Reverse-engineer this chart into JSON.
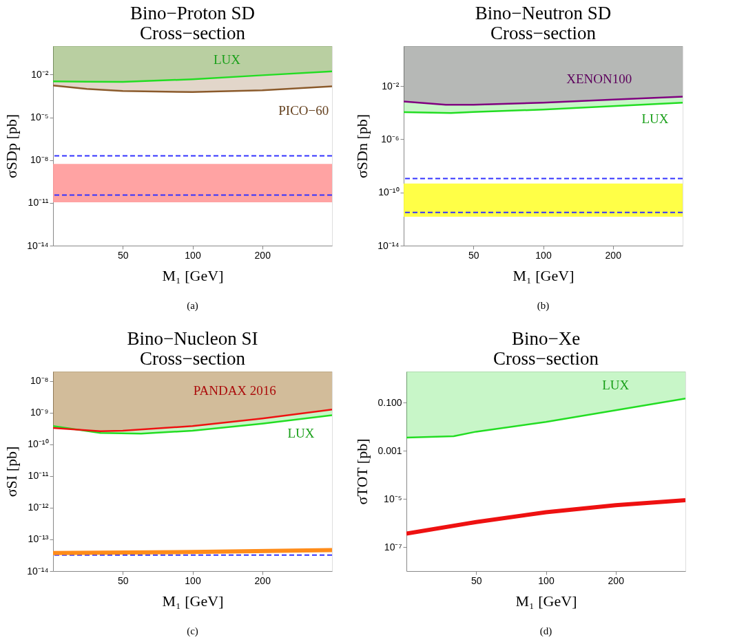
{
  "chart_data": [
    {
      "type": "line",
      "title": "Bino−Proton SD\nCross−section",
      "xlabel": "M₁ [GeV]",
      "ylabel": "σSDp [pb]",
      "log": "xy",
      "grid": false,
      "xlim": [
        25,
        400
      ],
      "xticks": [
        50,
        100,
        200
      ],
      "ylim": [
        1e-14,
        1
      ],
      "yticks": [
        {
          "value": 0.01,
          "label": "10⁻²"
        },
        {
          "value": 1e-05,
          "label": "10⁻⁵"
        },
        {
          "value": 1e-08,
          "label": "10⁻⁸"
        },
        {
          "value": 1e-11,
          "label": "10⁻¹¹"
        },
        {
          "value": 1e-14,
          "label": "10⁻¹⁴"
        }
      ],
      "series": [
        {
          "name": "LUX",
          "color": "#22dd22",
          "x": [
            25,
            35,
            50,
            100,
            200,
            400
          ],
          "values": [
            0.0034,
            0.0032,
            0.0031,
            0.0047,
            0.009,
            0.017
          ],
          "lower": [
            0.0034,
            0.0032,
            0.0031,
            0.0047,
            0.009,
            0.017
          ],
          "upper": [
            1,
            1,
            1,
            1,
            1,
            1
          ]
        },
        {
          "name": "PICO−60",
          "color": "#8b5a2b",
          "x": [
            25,
            35,
            50,
            100,
            200,
            400
          ],
          "values": [
            0.0017,
            0.001,
            0.0007,
            0.0006,
            0.0008,
            0.0015
          ],
          "lower": [
            0.0017,
            0.001,
            0.0007,
            0.0006,
            0.0008,
            0.0015
          ],
          "upper": [
            1,
            1,
            1,
            1,
            1,
            1
          ]
        }
      ],
      "bands": [
        {
          "axis": "y",
          "from": 1.1e-11,
          "to": 5.4e-09,
          "color": "#ff9999"
        }
      ],
      "ref_lines": [
        {
          "axis": "y",
          "value": 2e-08,
          "color": "#3333ff",
          "line_style": "dashed"
        },
        {
          "axis": "y",
          "value": 3.5e-11,
          "color": "#3333ff",
          "line_style": "dashed"
        }
      ],
      "annotations": [
        "(a)"
      ]
    },
    {
      "type": "line",
      "title": "Bino−Neutron SD\nCross−section",
      "xlabel": "M₁ [GeV]",
      "ylabel": "σSDn [pb]",
      "log": "xy",
      "grid": false,
      "xlim": [
        25,
        400
      ],
      "xticks": [
        50,
        100,
        200
      ],
      "ylim": [
        1e-14,
        10
      ],
      "yticks": [
        {
          "value": 0.01,
          "label": "10⁻²"
        },
        {
          "value": 1e-06,
          "label": "10⁻⁶"
        },
        {
          "value": 1e-10,
          "label": "10⁻¹⁰"
        },
        {
          "value": 1e-14,
          "label": "10⁻¹⁴"
        }
      ],
      "series": [
        {
          "name": "LUX",
          "color": "#22dd22",
          "x": [
            25,
            40,
            50,
            100,
            200,
            400
          ],
          "values": [
            0.000107,
            9.3e-05,
            0.00011,
            0.00017,
            0.00031,
            0.00056
          ],
          "lower": [
            0.000107,
            9.3e-05,
            0.00011,
            0.00017,
            0.00031,
            0.00056
          ],
          "upper": [
            10,
            10,
            10,
            10,
            10,
            10
          ]
        },
        {
          "name": "XENON100",
          "color": "#800080",
          "x": [
            25,
            38,
            50,
            100,
            200,
            400
          ],
          "values": [
            0.00068,
            0.00039,
            0.00039,
            0.00056,
            0.00095,
            0.0016
          ],
          "lower": [
            0.00068,
            0.00039,
            0.00039,
            0.00056,
            0.00095,
            0.0016
          ],
          "upper": [
            10,
            10,
            10,
            10,
            10,
            10
          ]
        }
      ],
      "bands": [
        {
          "axis": "y",
          "from": 1.5e-12,
          "to": 4.7e-10,
          "color": "#ffff33"
        }
      ],
      "ref_lines": [
        {
          "axis": "y",
          "value": 1.1e-09,
          "color": "#3333ff",
          "line_style": "dashed"
        },
        {
          "axis": "y",
          "value": 3.1e-12,
          "color": "#3333ff",
          "line_style": "dashed"
        }
      ],
      "annotations": [
        "(b)"
      ]
    },
    {
      "type": "line",
      "title": "Bino−Nucleon SI\nCross−section",
      "xlabel": "M₁ [GeV]",
      "ylabel": "σSI [pb]",
      "log": "xy",
      "grid": false,
      "xlim": [
        25,
        400
      ],
      "xticks": [
        50,
        100,
        200
      ],
      "ylim": [
        1e-14,
        2e-08
      ],
      "yticks": [
        {
          "value": 1e-08,
          "label": "10⁻⁸"
        },
        {
          "value": 1e-09,
          "label": "10⁻⁹"
        },
        {
          "value": 1e-10,
          "label": "10⁻¹⁰"
        },
        {
          "value": 1e-11,
          "label": "10⁻¹¹"
        },
        {
          "value": 1e-12,
          "label": "10⁻¹²"
        },
        {
          "value": 1e-13,
          "label": "10⁻¹³"
        },
        {
          "value": 1e-14,
          "label": "10⁻¹⁴"
        }
      ],
      "series": [
        {
          "name": "LUX",
          "color": "#22dd22",
          "x": [
            25,
            40,
            60,
            100,
            200,
            400
          ],
          "values": [
            3.8e-10,
            2.3e-10,
            2.2e-10,
            2.7e-10,
            4.5e-10,
            8.3e-10
          ],
          "lower": [
            3.8e-10,
            2.3e-10,
            2.2e-10,
            2.7e-10,
            4.5e-10,
            8.3e-10
          ],
          "upper": [
            2e-08,
            2e-08,
            2e-08,
            2e-08,
            2e-08,
            2e-08
          ]
        },
        {
          "name": "PANDAX 2016",
          "color": "#ee1111",
          "x": [
            25,
            40,
            50,
            100,
            200,
            400
          ],
          "values": [
            3.3e-10,
            2.6e-10,
            2.7e-10,
            3.8e-10,
            6.6e-10,
            1.26e-09
          ],
          "lower": [
            3.3e-10,
            2.6e-10,
            2.7e-10,
            3.8e-10,
            6.6e-10,
            1.26e-09
          ],
          "upper": [
            2e-08,
            2e-08,
            2e-08,
            2e-08,
            2e-08,
            2e-08
          ]
        },
        {
          "color": "#ff8c1a",
          "x": [
            25,
            100,
            400
          ],
          "values": [
            3.7e-14,
            4e-14,
            4.6e-14
          ]
        }
      ],
      "ref_lines": [
        {
          "axis": "y",
          "value": 3.2e-14,
          "color": "#3333ff",
          "line_style": "dashed"
        }
      ],
      "annotations": [
        "(c)"
      ]
    },
    {
      "type": "line",
      "title": "Bino−Xe\nCross−section",
      "xlabel": "M₁ [GeV]",
      "ylabel": "σTOT [pb]",
      "log": "xy",
      "grid": false,
      "xlim": [
        25,
        400
      ],
      "xticks": [
        50,
        100,
        200
      ],
      "ylim": [
        1e-08,
        2
      ],
      "yticks": [
        {
          "value": 0.1,
          "label": "0.100"
        },
        {
          "value": 0.001,
          "label": "0.001"
        },
        {
          "value": 1e-05,
          "label": "10⁻⁵"
        },
        {
          "value": 1e-07,
          "label": "10⁻⁷"
        }
      ],
      "series": [
        {
          "name": "LUX",
          "color": "#22dd22",
          "x": [
            25,
            40,
            50,
            100,
            200,
            400
          ],
          "values": [
            0.0036,
            0.0041,
            0.0063,
            0.016,
            0.049,
            0.15
          ],
          "lower": [
            0.0036,
            0.0041,
            0.0063,
            0.016,
            0.049,
            0.15
          ],
          "upper": [
            2,
            2,
            2,
            2,
            2,
            2
          ]
        },
        {
          "color": "#ee1111",
          "x": [
            25,
            50,
            100,
            200,
            400
          ],
          "values": [
            3.6e-07,
            1.1e-06,
            2.8e-06,
            5.5e-06,
            8.9e-06
          ]
        }
      ],
      "annotations": [
        "(d)"
      ]
    }
  ]
}
